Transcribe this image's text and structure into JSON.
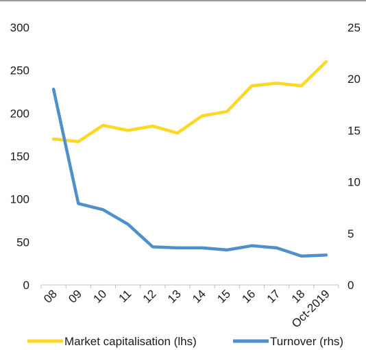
{
  "chart_data": {
    "type": "line",
    "title": "",
    "xlabel": "",
    "categories": [
      "08",
      "09",
      "10",
      "11",
      "12",
      "13",
      "14",
      "15",
      "16",
      "17",
      "18",
      "Oct-2019"
    ],
    "left_axis": {
      "ylabel": "",
      "ylim": [
        0,
        300
      ],
      "ticks": [
        0,
        50,
        100,
        150,
        200,
        250,
        300
      ]
    },
    "right_axis": {
      "ylabel": "",
      "ylim": [
        0,
        25
      ],
      "ticks": [
        0,
        5,
        10,
        15,
        20,
        25
      ]
    },
    "grid": false,
    "legend_position": "bottom",
    "series": [
      {
        "name": "Market capitalisation (lhs)",
        "axis": "left",
        "color": "#FFD826",
        "values": [
          170,
          167,
          186,
          180,
          185,
          177,
          197,
          202,
          232,
          235,
          232,
          260
        ]
      },
      {
        "name": "Turnover (rhs)",
        "axis": "right",
        "color": "#4F8FCB",
        "values": [
          19.0,
          7.9,
          7.3,
          5.9,
          3.7,
          3.6,
          3.6,
          3.4,
          3.8,
          3.6,
          2.8,
          2.9
        ]
      }
    ]
  }
}
